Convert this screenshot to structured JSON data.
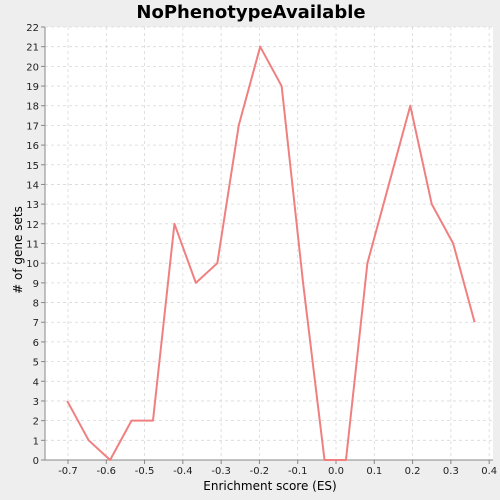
{
  "chart_data": {
    "type": "line",
    "title": "NoPhenotypeAvailable",
    "xlabel": "Enrichment score (ES)",
    "ylabel": "# of gene sets",
    "xlim": [
      -0.76,
      0.41
    ],
    "ylim": [
      0,
      22
    ],
    "grid": true,
    "x_ticks": [
      -0.7,
      -0.6,
      -0.5,
      -0.4,
      -0.3,
      -0.2,
      -0.1,
      0.0,
      0.1,
      0.2,
      0.3,
      0.4
    ],
    "x_tick_labels": [
      "-0.7",
      "-0.6",
      "-0.5",
      "-0.4",
      "-0.3",
      "-0.2",
      "-0.1",
      "0.0",
      "0.1",
      "0.2",
      "0.3",
      "0.4"
    ],
    "y_ticks": [
      0,
      1,
      2,
      3,
      4,
      5,
      6,
      7,
      8,
      9,
      10,
      11,
      12,
      13,
      14,
      15,
      16,
      17,
      18,
      19,
      20,
      21,
      22
    ],
    "y_tick_labels": [
      "0",
      "1",
      "2",
      "3",
      "4",
      "5",
      "6",
      "7",
      "8",
      "9",
      "10",
      "11",
      "12",
      "13",
      "14",
      "15",
      "16",
      "17",
      "18",
      "19",
      "20",
      "21",
      "22"
    ],
    "series": [
      {
        "color": "#f08080",
        "x": [
          -0.702,
          -0.646,
          -0.59,
          -0.534,
          -0.478,
          -0.422,
          -0.366,
          -0.31,
          -0.254,
          -0.198,
          -0.142,
          -0.086,
          -0.03,
          0.026,
          0.082,
          0.138,
          0.194,
          0.25,
          0.306,
          0.362
        ],
        "y": [
          3,
          1,
          0,
          2,
          2,
          12,
          9,
          10,
          17,
          21,
          19,
          9,
          0,
          0,
          10,
          14,
          18,
          13,
          11,
          7
        ]
      }
    ]
  }
}
